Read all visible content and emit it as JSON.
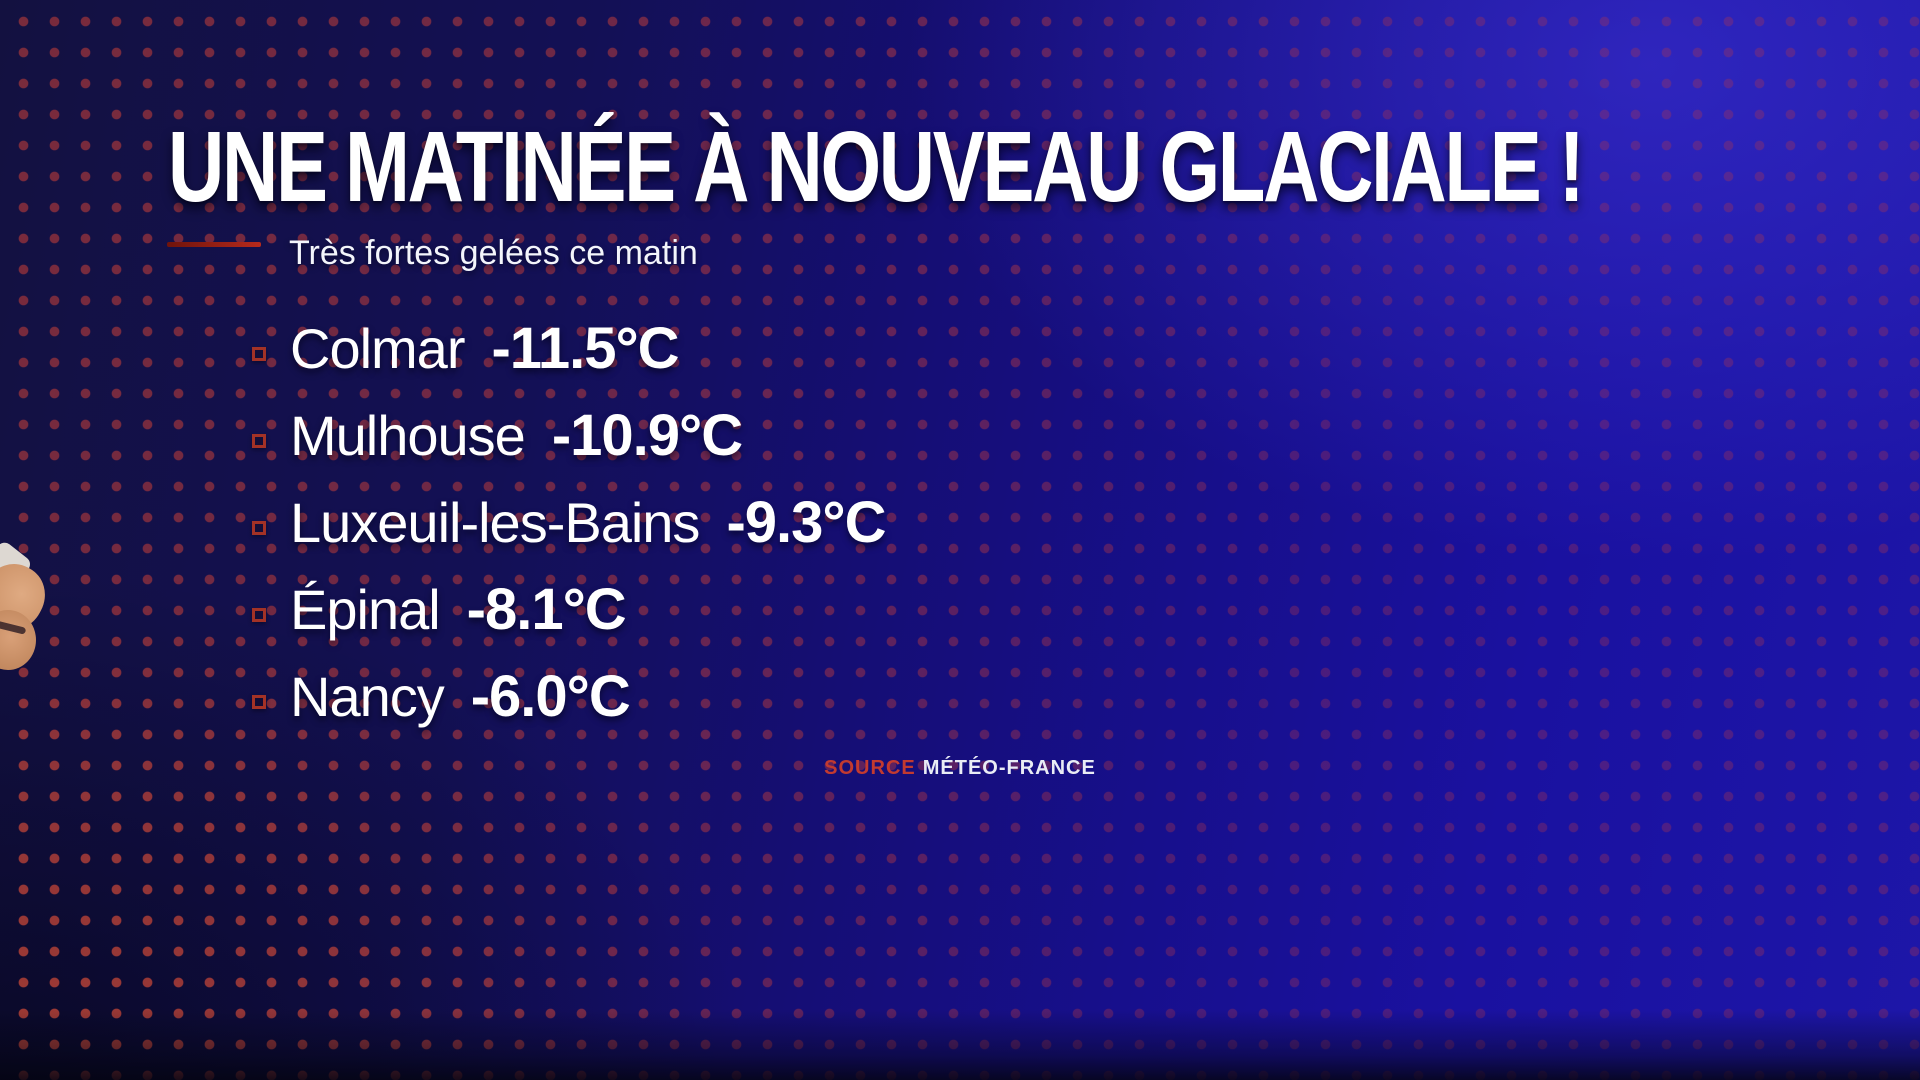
{
  "title": "UNE MATINÉE À NOUVEAU GLACIALE !",
  "subtitle": "Très fortes gelées ce matin",
  "rows": [
    {
      "city": "Colmar",
      "temp": "-11.5°C"
    },
    {
      "city": "Mulhouse",
      "temp": "-10.9°C"
    },
    {
      "city": "Luxeuil-les-Bains",
      "temp": "-9.3°C"
    },
    {
      "city": "Épinal",
      "temp": "-8.1°C"
    },
    {
      "city": "Nancy",
      "temp": "-6.0°C"
    }
  ],
  "source": {
    "label": "SOURCE",
    "value": "MÉTÉO-FRANCE"
  },
  "chart_data": {
    "type": "table",
    "title": "UNE MATINÉE À NOUVEAU GLACIALE !",
    "subtitle": "Très fortes gelées ce matin",
    "categories": [
      "Colmar",
      "Mulhouse",
      "Luxeuil-les-Bains",
      "Épinal",
      "Nancy"
    ],
    "values": [
      -11.5,
      -10.9,
      -9.3,
      -8.1,
      -6.0
    ],
    "unit": "°C",
    "source": "MÉTÉO-FRANCE"
  },
  "colors": {
    "accent_red": "#b72a1c",
    "bullet_red": "#a33226",
    "source_red": "#c23a30",
    "bg_blue_bright": "#1d16a8",
    "bg_navy_dark": "#131140",
    "dot_red": "#8b2720",
    "text_white": "#ffffff"
  }
}
